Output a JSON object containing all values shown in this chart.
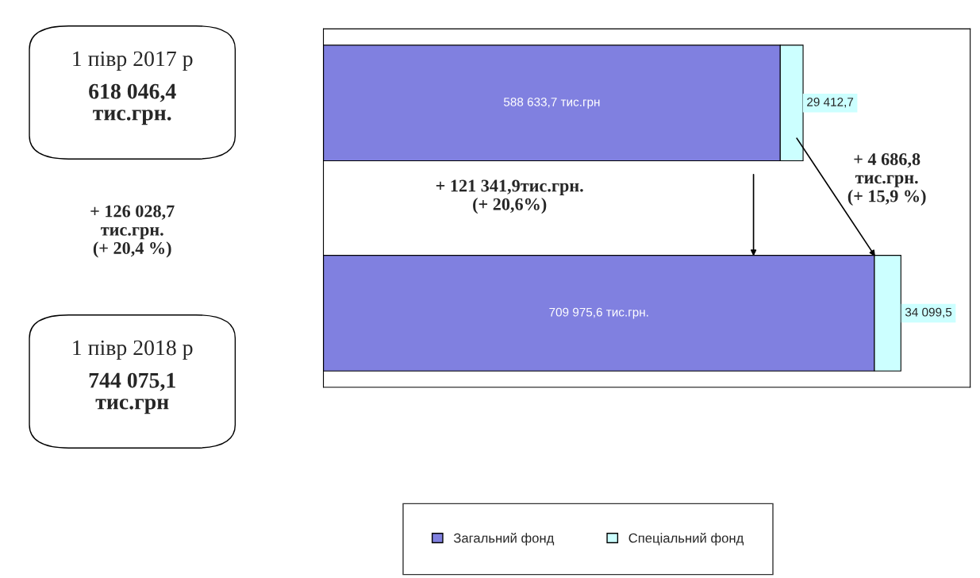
{
  "chart_data": {
    "type": "bar",
    "orientation": "horizontal",
    "stacked": true,
    "categories": [
      null,
      null
    ],
    "series": [
      {
        "name": "Загальний фонд",
        "color": "#8080e0",
        "values": [
          588633.7,
          709975.6
        ],
        "value_labels": [
          "588 633,7 тис.грн",
          "709 975,6 тис.грн."
        ]
      },
      {
        "name": "Спеціальний фонд",
        "color": "#ccffff",
        "values": [
          29412.7,
          34099.5
        ],
        "value_labels": [
          "29 412,7",
          "34 099,5"
        ]
      }
    ],
    "legend": "bottom",
    "annotations": [
      "1 півр 2017 р\n618 046,4\nтис.грн.",
      "+ 126 028,7\nтис.грн.\n(+ 20,4 %)",
      "1 півр 2018 р\n744 075,1\nтис.грн",
      "+ 121 341,9тис.грн.\n(+ 20,6%)",
      "+ 4 686,8\nтис.грн.\n(+ 15,9 %)"
    ]
  }
}
